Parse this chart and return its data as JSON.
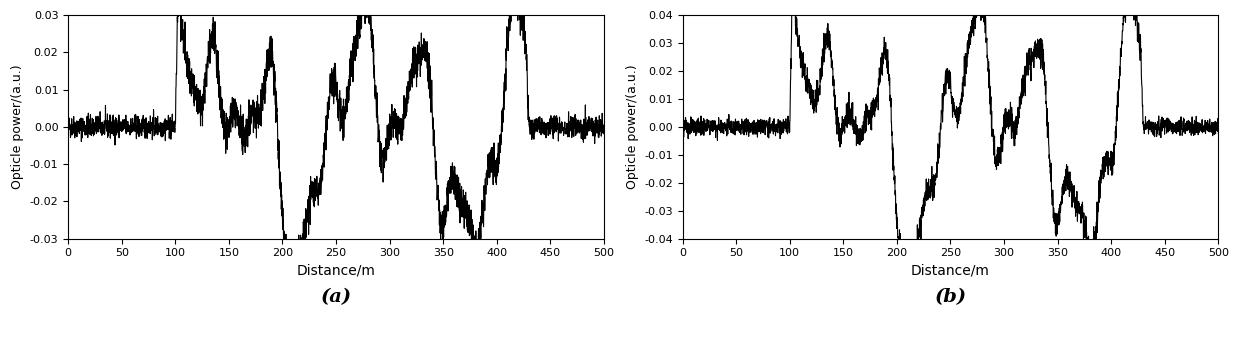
{
  "title_a": "(a)",
  "title_b": "(b)",
  "xlabel": "Distance/m",
  "ylabel": "Opticle power/(a.u.)",
  "xlim": [
    0,
    500
  ],
  "ylim_a": [
    -0.03,
    0.03
  ],
  "ylim_b": [
    -0.04,
    0.04
  ],
  "xticks": [
    0,
    50,
    100,
    150,
    200,
    250,
    300,
    350,
    400,
    450,
    500
  ],
  "yticks_a": [
    -0.03,
    -0.02,
    -0.01,
    0,
    0.01,
    0.02,
    0.03
  ],
  "yticks_b": [
    -0.04,
    -0.03,
    -0.02,
    -0.01,
    0,
    0.01,
    0.02,
    0.03,
    0.04
  ],
  "line_color": "#000000",
  "line_width": 0.8,
  "background_color": "#ffffff",
  "seed_a": 42,
  "seed_b": 123,
  "n_points": 500
}
